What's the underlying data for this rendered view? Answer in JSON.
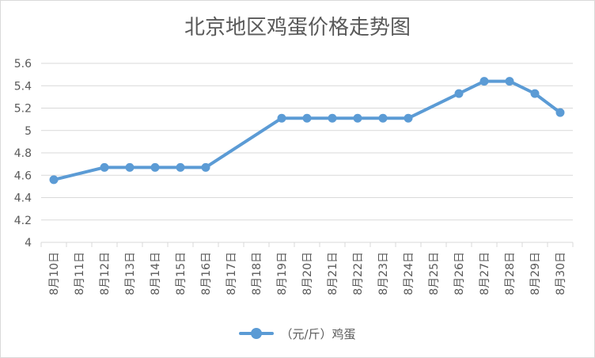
{
  "chart_data": {
    "type": "line",
    "title": "北京地区鸡蛋价格走势图",
    "categories": [
      "8月10日",
      "8月11日",
      "8月12日",
      "8月13日",
      "8月14日",
      "8月15日",
      "8月16日",
      "8月17日",
      "8月18日",
      "8月19日",
      "8月20日",
      "8月21日",
      "8月22日",
      "8月23日",
      "8月24日",
      "8月25日",
      "8月26日",
      "8月27日",
      "8月28日",
      "8月29日",
      "8月30日"
    ],
    "series": [
      {
        "name": "（元/斤）鸡蛋",
        "color": "#5b9bd5",
        "values": [
          4.56,
          null,
          4.67,
          4.67,
          4.67,
          4.67,
          4.67,
          null,
          null,
          5.11,
          5.11,
          5.11,
          5.11,
          5.11,
          5.11,
          null,
          5.33,
          5.44,
          5.44,
          5.33,
          5.16
        ]
      }
    ],
    "ylim": [
      4,
      5.6
    ],
    "yticks": [
      4,
      4.2,
      4.4,
      4.6,
      4.8,
      5,
      5.2,
      5.4,
      5.6
    ],
    "grid": true,
    "legend_position": "bottom"
  }
}
